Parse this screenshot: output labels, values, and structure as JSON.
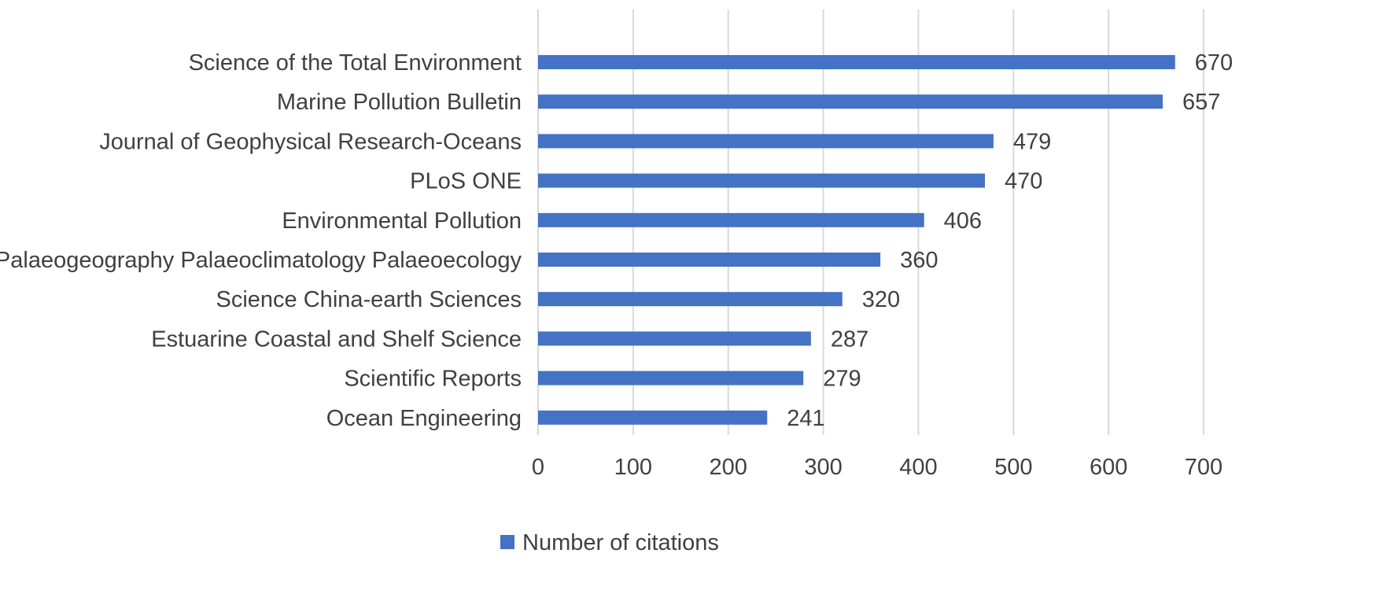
{
  "chart_data": {
    "type": "bar",
    "orientation": "horizontal",
    "categories": [
      "Science of the Total Environment",
      "Marine Pollution Bulletin",
      "Journal of Geophysical Research-Oceans",
      "PLoS ONE",
      "Environmental Pollution",
      "Palaeogeography Palaeoclimatology Palaeoecology",
      "Science China-earth Sciences",
      "Estuarine Coastal and Shelf Science",
      "Scientific Reports",
      "Ocean Engineering"
    ],
    "series": [
      {
        "name": "Number of citations",
        "values": [
          670,
          657,
          479,
          470,
          406,
          360,
          320,
          287,
          279,
          241
        ],
        "color": "#4472C4"
      }
    ],
    "xlim": [
      0,
      700
    ],
    "xticks": [
      0,
      100,
      200,
      300,
      400,
      500,
      600,
      700
    ],
    "title": "",
    "xlabel": "",
    "ylabel": "",
    "grid": "vertical",
    "legend_position": "bottom",
    "data_labels": true
  }
}
